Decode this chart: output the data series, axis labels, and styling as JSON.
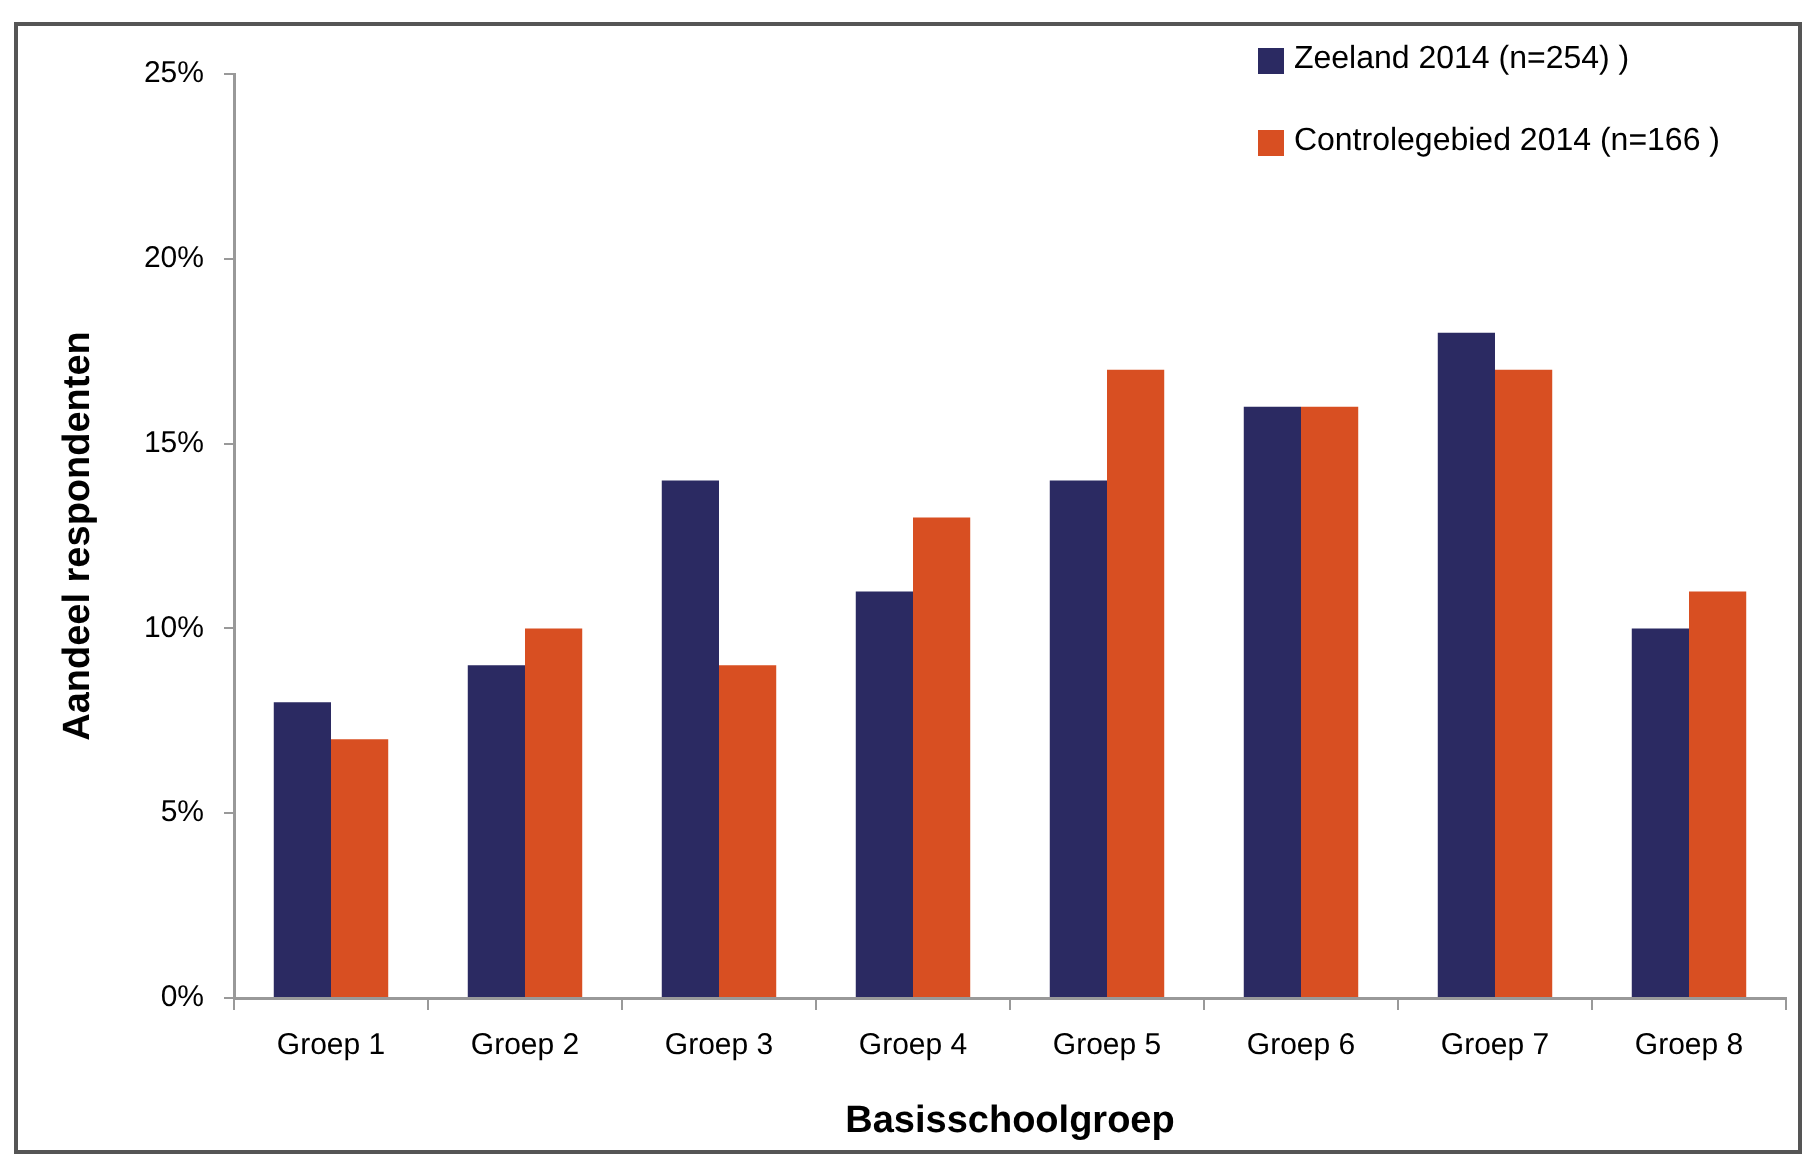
{
  "chart_data": {
    "type": "bar",
    "xlabel": "Basisschoolgroep",
    "ylabel": "Aandeel respondenten",
    "categories": [
      "Groep 1",
      "Groep 2",
      "Groep 3",
      "Groep 4",
      "Groep 5",
      "Groep 6",
      "Groep 7",
      "Groep 8"
    ],
    "series": [
      {
        "name": "Zeeland 2014 (n=254) )",
        "color": "#2b2a62",
        "values": [
          8,
          9,
          14,
          11,
          14,
          16,
          18,
          10
        ]
      },
      {
        "name": "Controlegebied 2014 (n=166 )",
        "color": "#d84f22",
        "values": [
          7,
          10,
          9,
          13,
          17,
          16,
          17,
          11
        ]
      }
    ],
    "ylim": [
      0,
      25
    ],
    "yticks": [
      {
        "value": 0,
        "label": "0%"
      },
      {
        "value": 5,
        "label": "5%"
      },
      {
        "value": 10,
        "label": "10%"
      },
      {
        "value": 15,
        "label": "15%"
      },
      {
        "value": 20,
        "label": "20%"
      },
      {
        "value": 25,
        "label": "25%"
      }
    ],
    "grid": false,
    "legend": "top right"
  }
}
